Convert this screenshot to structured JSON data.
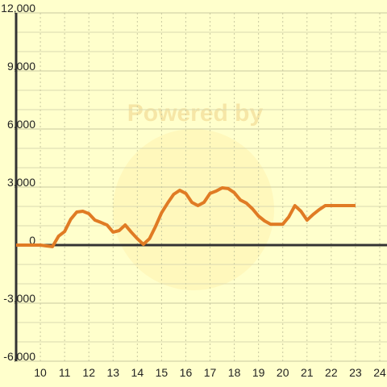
{
  "chart_data": {
    "type": "line",
    "watermark": "Powered by",
    "x": [
      9,
      10,
      10.25,
      10.5,
      10.75,
      11,
      11.25,
      11.5,
      11.75,
      12,
      12.25,
      12.5,
      12.75,
      13,
      13.25,
      13.5,
      13.75,
      14,
      14.25,
      14.5,
      14.75,
      15,
      15.25,
      15.5,
      15.75,
      16,
      16.25,
      16.5,
      16.75,
      17,
      17.25,
      17.5,
      17.75,
      18,
      18.25,
      18.5,
      18.75,
      19,
      19.25,
      19.5,
      19.75,
      20,
      20.25,
      20.5,
      20.75,
      21,
      21.25,
      21.5,
      21.75,
      22,
      23
    ],
    "series": [
      {
        "color": "#e07b24",
        "values": [
          0,
          0,
          -40,
          -80,
          460,
          700,
          1330,
          1710,
          1750,
          1625,
          1290,
          1170,
          1040,
          670,
          750,
          1040,
          670,
          330,
          40,
          330,
          960,
          1670,
          2170,
          2625,
          2830,
          2670,
          2210,
          2040,
          2210,
          2670,
          2790,
          2960,
          2920,
          2710,
          2330,
          2170,
          1875,
          1500,
          1250,
          1080,
          1080,
          1080,
          1460,
          2040,
          1750,
          1290,
          1580,
          1830,
          2040,
          2040,
          2040
        ]
      }
    ],
    "xlim": [
      9,
      24.3
    ],
    "xticks": [
      10,
      11,
      12,
      13,
      14,
      15,
      16,
      17,
      18,
      19,
      20,
      21,
      22,
      23,
      24
    ],
    "ylim": [
      -6000,
      12000
    ],
    "yticks": [
      {
        "value": -6000,
        "label": "-6,000"
      },
      {
        "value": -3000,
        "label": "-3,000"
      },
      0,
      {
        "value": 3000,
        "label": "3,000"
      },
      {
        "value": 6000,
        "label": "6,000"
      },
      {
        "value": 9000,
        "label": "9,000"
      },
      {
        "value": 12000,
        "label": "12,000"
      }
    ],
    "yminorticks": [
      -5000,
      -4000,
      -2000,
      -1000,
      1000,
      2000,
      4000,
      5000,
      7000,
      8000,
      10000,
      11000
    ],
    "grid": true
  }
}
